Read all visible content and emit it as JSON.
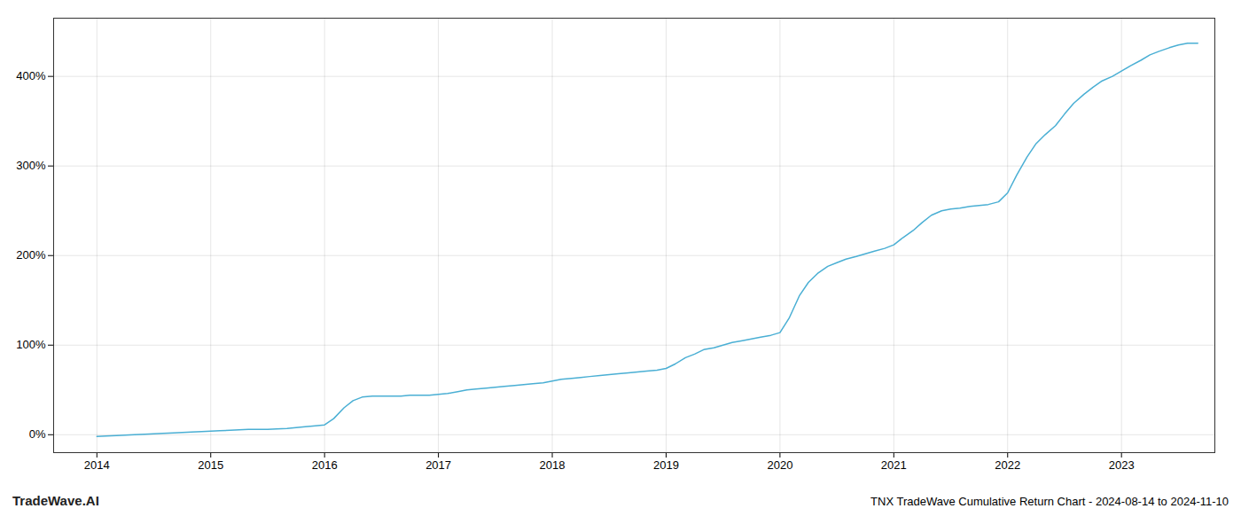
{
  "chart_data": {
    "type": "line",
    "title": "TNX TradeWave Cumulative Return Chart - 2024-08-14 to 2024-11-10",
    "annotations": [
      {
        "text": "TradeWave.AI"
      }
    ],
    "color": "#4aafd4",
    "grid": true,
    "x": [
      2014.0,
      2014.08,
      2014.17,
      2014.25,
      2014.33,
      2014.42,
      2014.5,
      2014.58,
      2014.67,
      2014.75,
      2014.83,
      2014.92,
      2015.0,
      2015.08,
      2015.17,
      2015.25,
      2015.33,
      2015.42,
      2015.5,
      2015.58,
      2015.67,
      2015.75,
      2015.83,
      2015.92,
      2016.0,
      2016.08,
      2016.17,
      2016.25,
      2016.33,
      2016.42,
      2016.5,
      2016.58,
      2016.67,
      2016.75,
      2016.83,
      2016.92,
      2017.0,
      2017.08,
      2017.17,
      2017.25,
      2017.33,
      2017.42,
      2017.5,
      2017.58,
      2017.67,
      2017.75,
      2017.83,
      2017.92,
      2018.0,
      2018.08,
      2018.17,
      2018.25,
      2018.33,
      2018.42,
      2018.5,
      2018.58,
      2018.67,
      2018.75,
      2018.83,
      2018.92,
      2019.0,
      2019.08,
      2019.17,
      2019.25,
      2019.33,
      2019.42,
      2019.5,
      2019.58,
      2019.67,
      2019.75,
      2019.83,
      2019.92,
      2020.0,
      2020.08,
      2020.17,
      2020.25,
      2020.33,
      2020.42,
      2020.5,
      2020.58,
      2020.67,
      2020.75,
      2020.83,
      2020.92,
      2021.0,
      2021.08,
      2021.17,
      2021.25,
      2021.33,
      2021.42,
      2021.5,
      2021.58,
      2021.67,
      2021.75,
      2021.83,
      2021.92,
      2022.0,
      2022.08,
      2022.17,
      2022.25,
      2022.33,
      2022.42,
      2022.5,
      2022.58,
      2022.67,
      2022.75,
      2022.83,
      2022.92,
      2023.0,
      2023.08,
      2023.17,
      2023.25,
      2023.33,
      2023.42,
      2023.5,
      2023.58,
      2023.67
    ],
    "values": [
      -2,
      -1.5,
      -1,
      -0.5,
      0,
      0.5,
      1,
      1.5,
      2,
      2.5,
      3,
      3.5,
      4,
      4.5,
      5,
      5.5,
      6,
      6,
      6,
      6.5,
      7,
      8,
      9,
      10,
      11,
      18,
      30,
      38,
      42,
      43,
      43,
      43,
      43,
      44,
      44,
      44,
      45,
      46,
      48,
      50,
      51,
      52,
      53,
      54,
      55,
      56,
      57,
      58,
      60,
      62,
      63,
      64,
      65,
      66,
      67,
      68,
      69,
      70,
      71,
      72,
      74,
      79,
      86,
      90,
      95,
      97,
      100,
      103,
      105,
      107,
      109,
      111,
      114,
      130,
      155,
      170,
      180,
      188,
      192,
      196,
      199,
      202,
      205,
      208,
      212,
      220,
      228,
      237,
      245,
      250,
      252,
      253,
      255,
      256,
      257,
      260,
      270,
      290,
      310,
      325,
      335,
      345,
      358,
      370,
      380,
      388,
      395,
      400,
      406,
      412,
      418,
      424,
      428,
      432,
      435,
      437,
      437
    ],
    "xlim": [
      2013.62,
      2023.82
    ],
    "xticks": [
      2014,
      2015,
      2016,
      2017,
      2018,
      2019,
      2020,
      2021,
      2022,
      2023
    ],
    "ylim": [
      -20,
      465
    ],
    "yticks": [
      {
        "value": 0,
        "label": "0%"
      },
      {
        "value": 100,
        "label": "100%"
      },
      {
        "value": 200,
        "label": "200%"
      },
      {
        "value": 300,
        "label": "300%"
      },
      {
        "value": 400,
        "label": "400%"
      }
    ]
  }
}
